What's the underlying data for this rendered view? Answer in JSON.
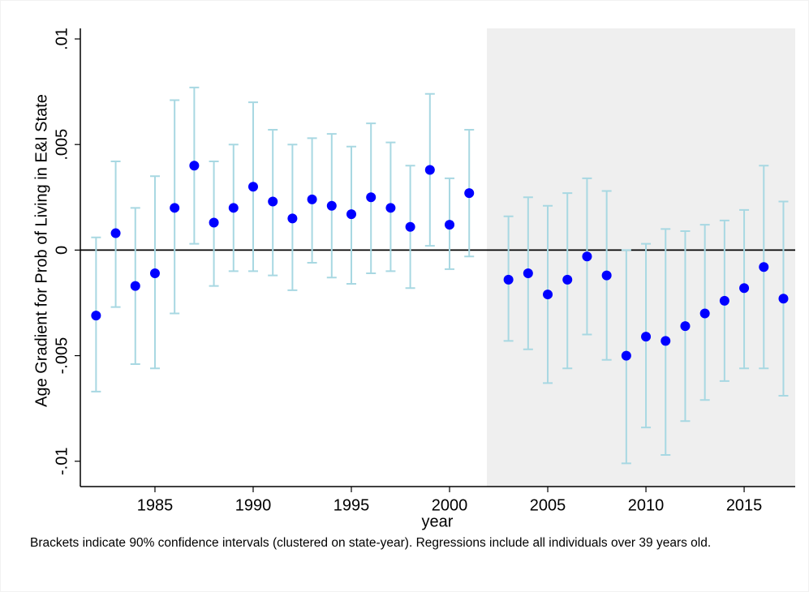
{
  "chart_data": {
    "type": "errorbar",
    "y_label": "Age Gradient for Prob of Living in E&I State",
    "x_label": "year",
    "note": "Brackets indicate 90% confidence intervals (clustered on state-year). Regressions include all individuals over 39 years old.",
    "x": [
      1982,
      1983,
      1984,
      1985,
      1986,
      1987,
      1988,
      1989,
      1990,
      1991,
      1992,
      1993,
      1994,
      1995,
      1996,
      1997,
      1998,
      1999,
      2000,
      2001,
      2003,
      2004,
      2005,
      2006,
      2007,
      2008,
      2009,
      2010,
      2011,
      2012,
      2013,
      2014,
      2015,
      2016,
      2017
    ],
    "values": [
      -0.0031,
      0.0008,
      -0.0017,
      -0.0011,
      0.002,
      0.004,
      0.0013,
      0.002,
      0.003,
      0.0023,
      0.0015,
      0.0024,
      0.0021,
      0.0017,
      0.0025,
      0.002,
      0.0011,
      0.0038,
      0.0012,
      0.0027,
      -0.0014,
      -0.0011,
      -0.0021,
      -0.0014,
      -0.0003,
      -0.0012,
      -0.005,
      -0.0041,
      -0.0043,
      -0.0036,
      -0.003,
      -0.0024,
      -0.0018,
      -0.0008,
      -0.0023
    ],
    "ci_lower": [
      -0.0067,
      -0.0027,
      -0.0054,
      -0.0056,
      -0.003,
      0.0003,
      -0.0017,
      -0.001,
      -0.001,
      -0.0012,
      -0.0019,
      -0.0006,
      -0.0013,
      -0.0016,
      -0.0011,
      -0.001,
      -0.0018,
      0.0002,
      -0.0009,
      -0.0003,
      -0.0043,
      -0.0047,
      -0.0063,
      -0.0056,
      -0.004,
      -0.0052,
      -0.0101,
      -0.0084,
      -0.0097,
      -0.0081,
      -0.0071,
      -0.0062,
      -0.0056,
      -0.0056,
      -0.0069
    ],
    "ci_upper": [
      0.0006,
      0.0042,
      0.002,
      0.0035,
      0.0071,
      0.0077,
      0.0042,
      0.005,
      0.007,
      0.0057,
      0.005,
      0.0053,
      0.0055,
      0.0049,
      0.006,
      0.0051,
      0.004,
      0.0074,
      0.0034,
      0.0057,
      0.0016,
      0.0025,
      0.0021,
      0.0027,
      0.0034,
      0.0028,
      0.0,
      0.0003,
      0.001,
      0.0009,
      0.0012,
      0.0014,
      0.0019,
      0.004,
      0.0023
    ],
    "color": "#0000ff",
    "ci_color": "#a8d8e2",
    "shade_color": "#efefef",
    "shade_xlim": [
      2001.9,
      2017.6
    ],
    "xlim": [
      1981.2,
      2017.6
    ],
    "ylim": [
      -0.0112,
      0.0105
    ],
    "xticks": [
      1985,
      1990,
      1995,
      2000,
      2005,
      2010,
      2015
    ],
    "yticks": [
      {
        "value": -0.01,
        "label": "-.01"
      },
      {
        "value": -0.005,
        "label": "-.005"
      },
      0,
      {
        "value": 0.005,
        "label": ".005"
      },
      {
        "value": 0.01,
        "label": ".01"
      }
    ],
    "reference_line": 0
  }
}
